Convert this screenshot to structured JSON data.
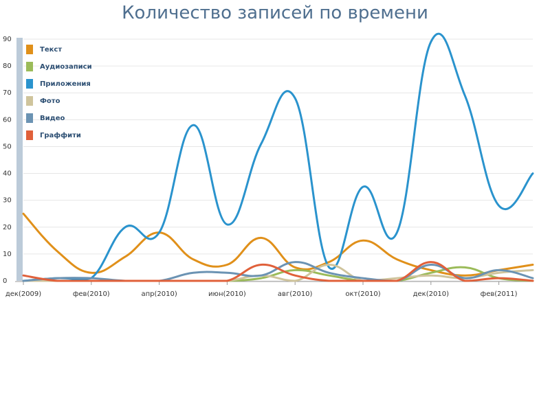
{
  "chart_data": {
    "type": "line",
    "title": "Количество записей по времени",
    "xlabel": "",
    "ylabel": "",
    "ylim": [
      0,
      90
    ],
    "yticks": [
      0,
      10,
      20,
      30,
      40,
      50,
      60,
      70,
      80,
      90
    ],
    "x": [
      "2009-12",
      "2010-01",
      "2010-02",
      "2010-03",
      "2010-04",
      "2010-05",
      "2010-06",
      "2010-07",
      "2010-08",
      "2010-09",
      "2010-10",
      "2010-11",
      "2010-12",
      "2011-01",
      "2011-02",
      "2011-03"
    ],
    "xtick_labels": [
      {
        "x": "2009-12",
        "label": "дек(2009)"
      },
      {
        "x": "2010-02",
        "label": "фев(2010)"
      },
      {
        "x": "2010-04",
        "label": "апр(2010)"
      },
      {
        "x": "2010-06",
        "label": "июн(2010)"
      },
      {
        "x": "2010-08",
        "label": "авг(2010)"
      },
      {
        "x": "2010-10",
        "label": "окт(2010)"
      },
      {
        "x": "2010-12",
        "label": "дек(2010)"
      },
      {
        "x": "2011-02",
        "label": "фев(2011)"
      }
    ],
    "grid": true,
    "legend_position": "top-left",
    "series": [
      {
        "name": "Текст",
        "color": "#e0901a",
        "values": [
          25,
          11,
          3,
          9,
          18,
          8,
          6,
          16,
          5,
          7,
          15,
          8,
          4,
          2,
          4,
          6
        ]
      },
      {
        "name": "Аудиозаписи",
        "color": "#9bbb59",
        "values": [
          0,
          0,
          0,
          0,
          0,
          0,
          0,
          1,
          4,
          2,
          0,
          0,
          3,
          5,
          1,
          0
        ]
      },
      {
        "name": "Приложения",
        "color": "#2a93cd",
        "values": [
          0,
          1,
          1,
          20,
          18,
          58,
          21,
          51,
          68,
          5,
          35,
          18,
          89,
          69,
          28,
          40
        ]
      },
      {
        "name": "Фото",
        "color": "#cfc49c",
        "values": [
          0,
          0,
          0,
          0,
          0,
          0,
          0,
          2,
          0,
          6,
          0,
          1,
          2,
          1,
          3,
          4
        ]
      },
      {
        "name": "Видео",
        "color": "#6b93b3",
        "values": [
          0,
          1,
          1,
          0,
          0,
          3,
          3,
          2,
          7,
          3,
          1,
          0,
          6,
          1,
          4,
          1
        ]
      },
      {
        "name": "Граффити",
        "color": "#e0603a",
        "values": [
          2,
          0,
          0,
          0,
          0,
          0,
          0,
          6,
          2,
          0,
          0,
          0,
          7,
          0,
          1,
          0
        ]
      }
    ]
  },
  "colors": {
    "title": "#4f6f8f",
    "axis_bar": "#bccbd9",
    "grid": "#e6e6e6",
    "legend_text": "#2d4f73"
  }
}
